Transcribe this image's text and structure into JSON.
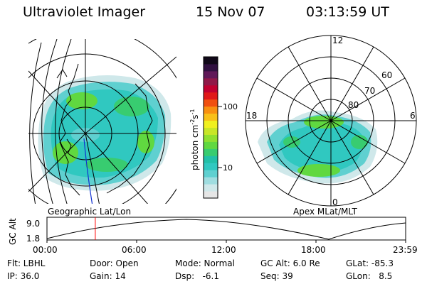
{
  "header": {
    "instrument": "Ultraviolet Imager",
    "date": "15 Nov 07",
    "time": "03:13:59 UT"
  },
  "left_panel": {
    "label": "Geographic Lat/Lon"
  },
  "right_panel": {
    "label": "Apex MLat/MLT",
    "mlt_labels": [
      "12",
      "18",
      "6",
      "0"
    ],
    "lat_labels": [
      "60",
      "70",
      "80"
    ]
  },
  "colorbar": {
    "unit_label": "photon cm",
    "unit_exp1": "-2",
    "unit_mid": "s",
    "unit_exp2": "-1",
    "tick_labels": [
      "100",
      "10"
    ],
    "colors": [
      "#e6e6e6",
      "#cfe8ea",
      "#9fdde0",
      "#5fd0d0",
      "#30c8c0",
      "#22c0a8",
      "#38cc70",
      "#60d840",
      "#90e030",
      "#c8e628",
      "#f0f020",
      "#f8c018",
      "#f89010",
      "#f05010",
      "#e01818",
      "#c00030",
      "#901848",
      "#601858",
      "#301040",
      "#100818"
    ]
  },
  "altitude_plot": {
    "y_axis_label": "GC Alt",
    "y_ticks": [
      "9.0",
      "1.8"
    ],
    "x_ticks": [
      "00:00",
      "06:00",
      "12:00",
      "18:00",
      "23:59"
    ],
    "marker_time": "03:14",
    "marker_color": "#ff0000"
  },
  "info": {
    "row1": {
      "filter": "Flt: LBHL",
      "door": "Door: Open",
      "mode": "Mode: Normal",
      "gc_alt": "GC Alt: 6.0 Re",
      "glat": "GLat: -85.3"
    },
    "row2": {
      "ip": "IP: 36.0",
      "gain": "Gain: 14",
      "dsp": "Dsp:   -6.1",
      "seq": "Seq: 39",
      "glon": "GLon:   8.5"
    }
  }
}
